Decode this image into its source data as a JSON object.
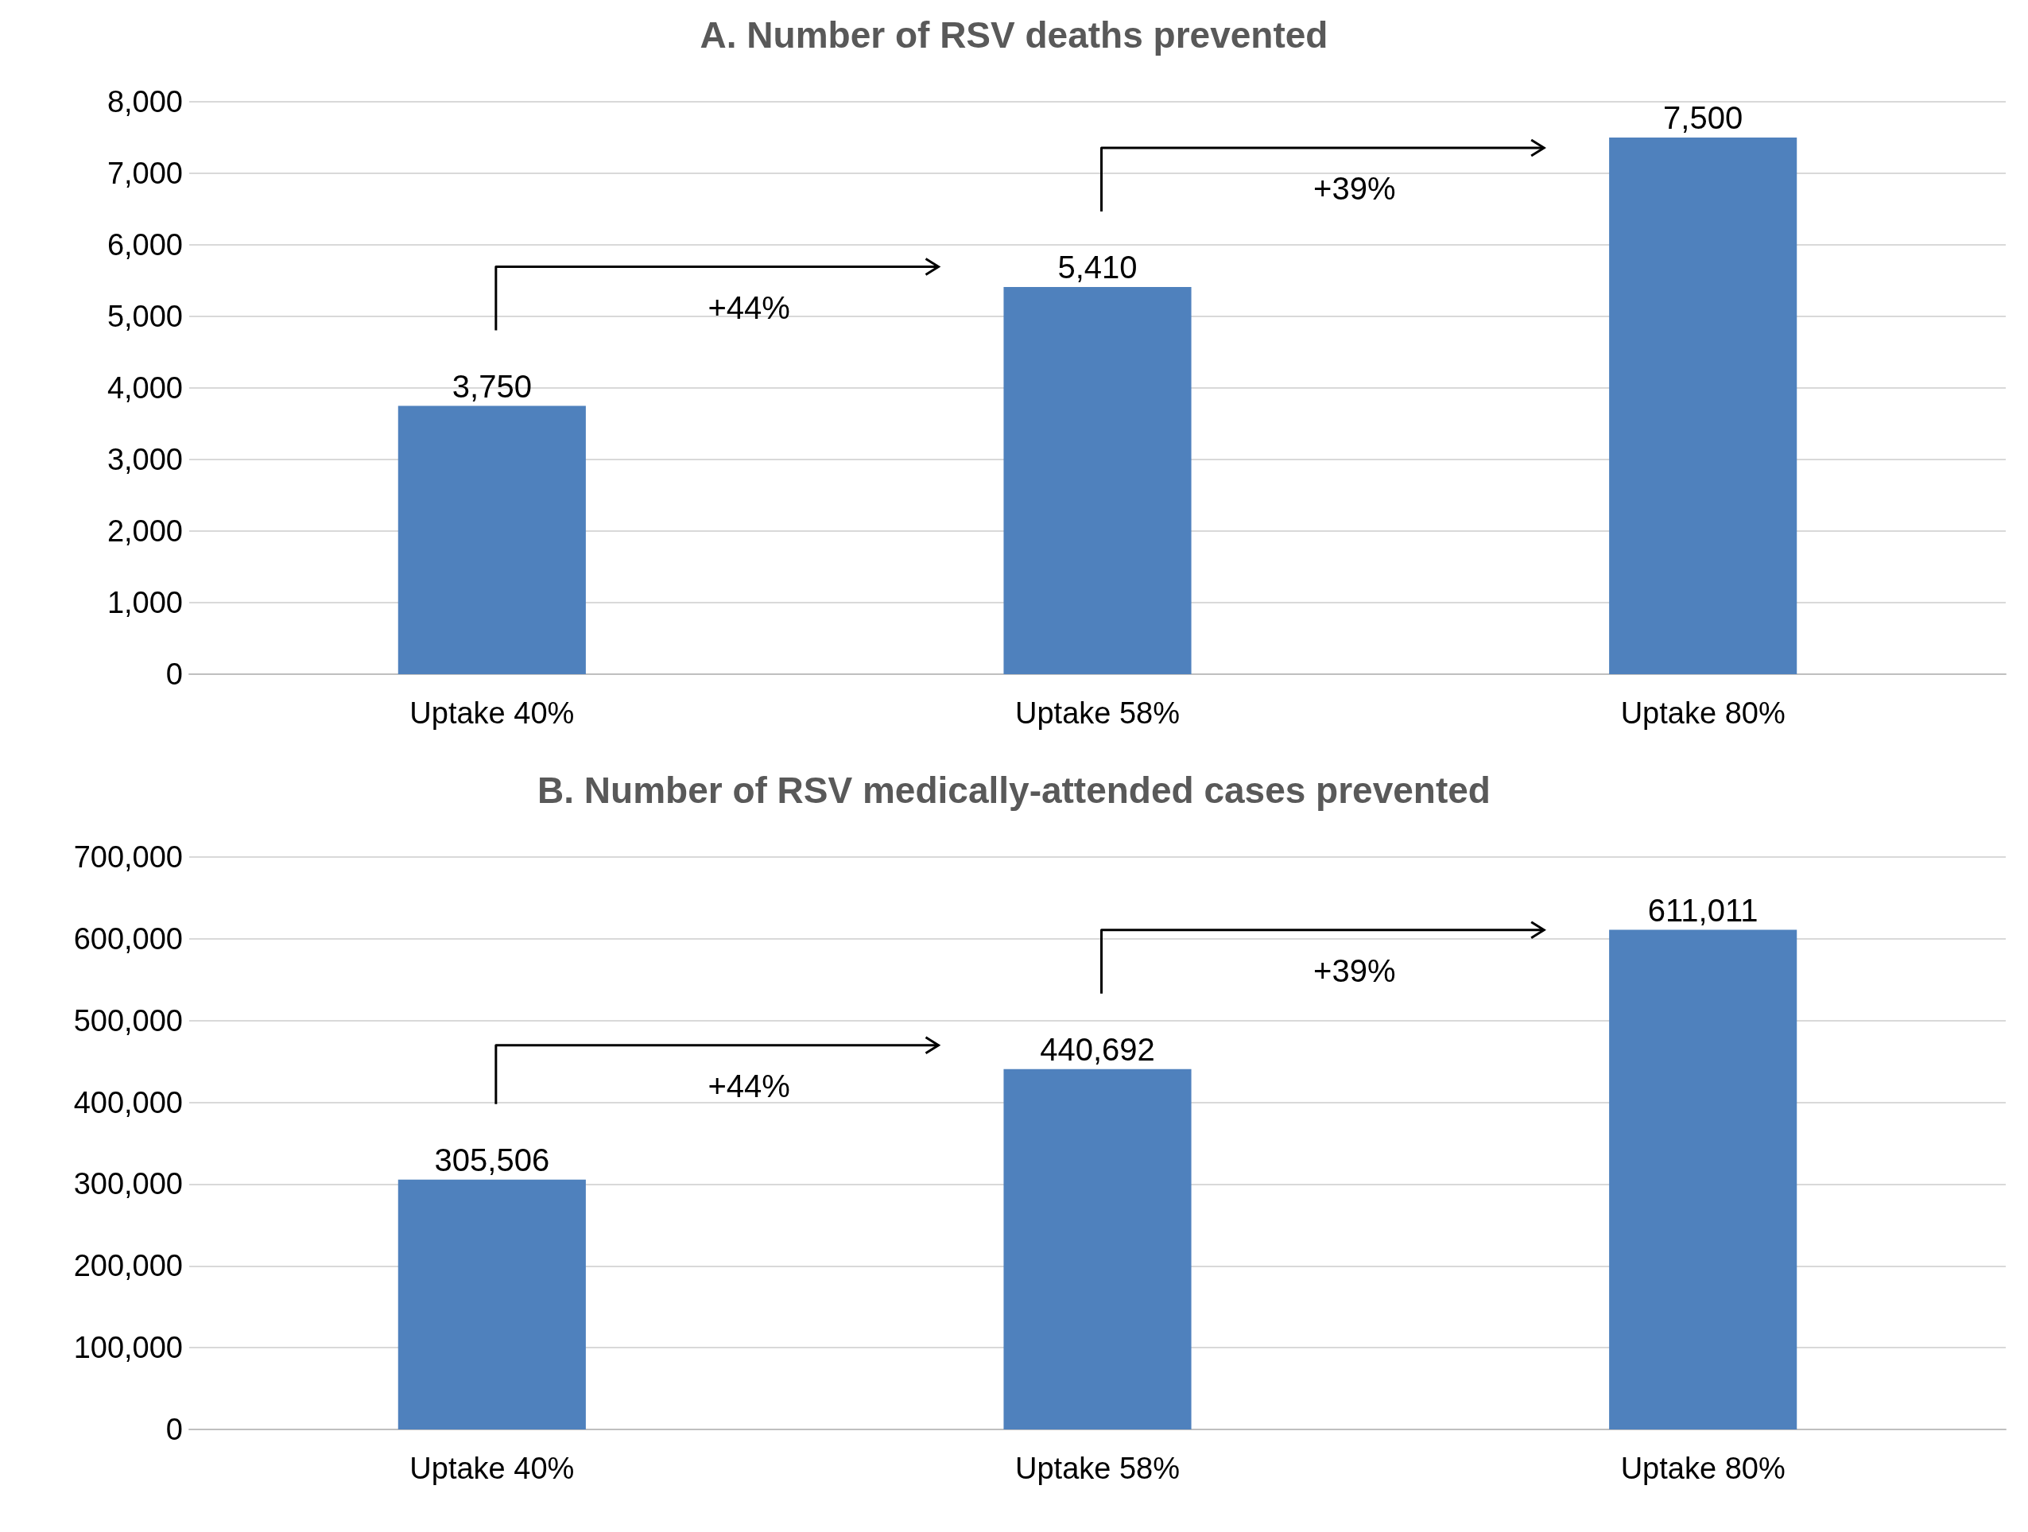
{
  "chart_data": [
    {
      "type": "bar",
      "title": "A. Number of RSV deaths prevented",
      "categories": [
        "Uptake 40%",
        "Uptake 58%",
        "Uptake 80%"
      ],
      "values": [
        3750,
        5410,
        7500
      ],
      "value_labels": [
        "3,750",
        "5,410",
        "7,500"
      ],
      "color": "#4f81bd",
      "ylim": [
        0,
        8000
      ],
      "yticks": [
        0,
        {
          "value": 1000,
          "label": "1,000"
        },
        {
          "value": 2000,
          "label": "2,000"
        },
        {
          "value": 3000,
          "label": "3,000"
        },
        {
          "value": 4000,
          "label": "4,000"
        },
        {
          "value": 5000,
          "label": "5,000"
        },
        {
          "value": 6000,
          "label": "6,000"
        },
        {
          "value": 7000,
          "label": "7,000"
        },
        {
          "value": 8000,
          "label": "8,000"
        }
      ],
      "grid": "y",
      "annotations": [
        "+44%",
        "+39%"
      ]
    },
    {
      "type": "bar",
      "title": "B. Number of RSV medically-attended cases prevented",
      "categories": [
        "Uptake 40%",
        "Uptake 58%",
        "Uptake 80%"
      ],
      "values": [
        305506,
        440692,
        611011
      ],
      "value_labels": [
        "305,506",
        "440,692",
        "611,011"
      ],
      "color": "#4f81bd",
      "ylim": [
        0,
        700000
      ],
      "yticks": [
        0,
        {
          "value": 100000,
          "label": "100,000"
        },
        {
          "value": 200000,
          "label": "200,000"
        },
        {
          "value": 300000,
          "label": "300,000"
        },
        {
          "value": 400000,
          "label": "400,000"
        },
        {
          "value": 500000,
          "label": "500,000"
        },
        {
          "value": 600000,
          "label": "600,000"
        },
        {
          "value": 700000,
          "label": "700,000"
        }
      ],
      "grid": "y",
      "annotations": [
        "+44%",
        "+39%"
      ]
    }
  ]
}
